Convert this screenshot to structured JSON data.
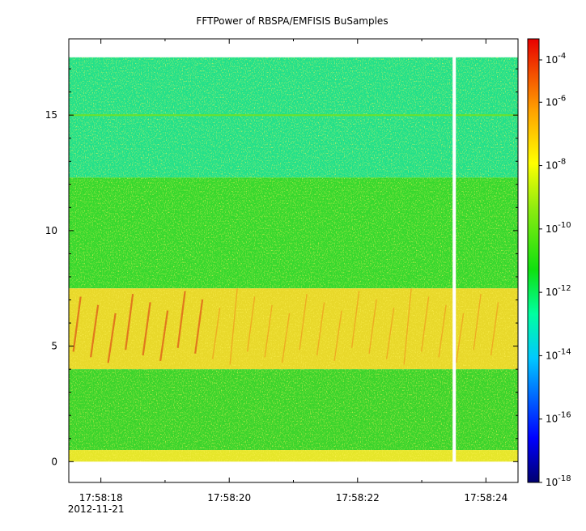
{
  "chart_data": {
    "type": "heatmap",
    "title": "FFTPower of RBSPA/EMFISIS  BuSamples",
    "xlabel": "",
    "ylabel": "",
    "x_start": "17:58:17.5",
    "x_end": "17:58:24.5",
    "x_ticks": [
      "17:58:18",
      "17:58:20",
      "17:58:22",
      "17:58:24"
    ],
    "x_date_label": "2012-11-21",
    "ylim": [
      -0.9,
      18.3
    ],
    "y_ticks": [
      0,
      5,
      10,
      15
    ],
    "data_time_range": [
      "17:58:16.95",
      "17:58:24.5"
    ],
    "data_y_range": [
      0,
      17.5
    ],
    "gap_time": "17:58:23.5",
    "colorbar": {
      "scale": "log",
      "range": [
        "1e-18",
        "1e-4"
      ],
      "tick_labels": [
        {
          "base": "10",
          "exp": "-4"
        },
        {
          "base": "10",
          "exp": "-6"
        },
        {
          "base": "10",
          "exp": "-8"
        },
        {
          "base": "10",
          "exp": "-10"
        },
        {
          "base": "10",
          "exp": "-12"
        },
        {
          "base": "10",
          "exp": "-14"
        },
        {
          "base": "10",
          "exp": "-16"
        },
        {
          "base": "10",
          "exp": "-18"
        }
      ]
    },
    "bands": [
      {
        "y_range": [
          12.3,
          17.5
        ],
        "level": "1e-12",
        "color": "#22e08a"
      },
      {
        "y_range": [
          7.5,
          12.3
        ],
        "level": "1e-10",
        "color": "#36d82e"
      },
      {
        "y_range": [
          4.0,
          7.5
        ],
        "level": "1e-8",
        "color": "#e8d82a"
      },
      {
        "y_range": [
          0.5,
          4.0
        ],
        "level": "1e-10",
        "color": "#3ad42c"
      },
      {
        "y_range": [
          0,
          0.5
        ],
        "level": "1e-8",
        "color": "#e6e62a"
      }
    ],
    "line_at": 15.0,
    "grid": false,
    "legend": "colorbar-right"
  }
}
